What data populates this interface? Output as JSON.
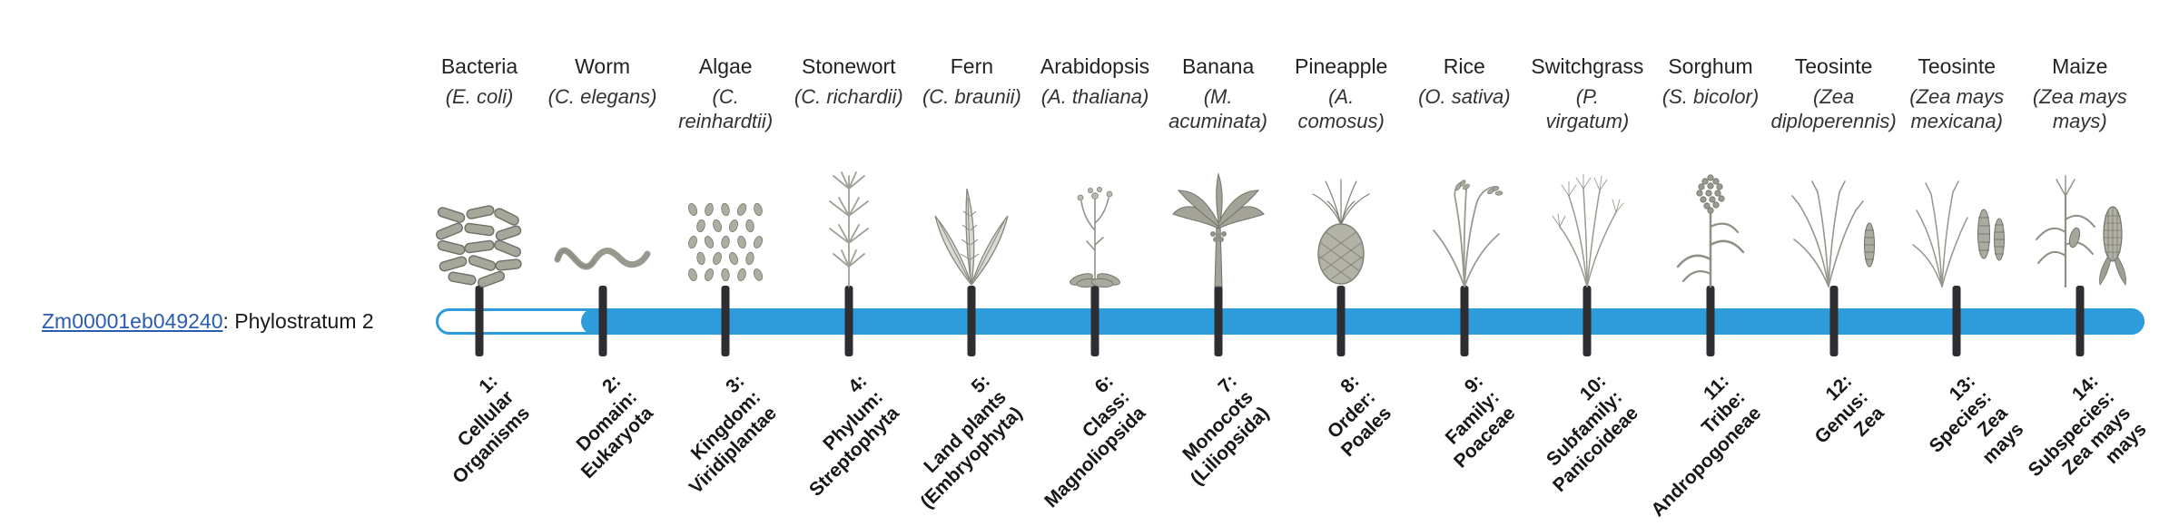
{
  "gene_label": {
    "gene_id": "Zm00001eb049240",
    "suffix": ": Phylostratum 2"
  },
  "timeline": {
    "track_color": "#2E9BDB",
    "fill_color": "#2E9BDB",
    "tick_color": "#2E2E32",
    "phylostratum": 2,
    "fill_start_stratum": 2,
    "total_strata": 14
  },
  "strata": [
    {
      "number": "1",
      "organism": "Bacteria",
      "scientific_lines": [
        "(E. coli)"
      ],
      "icon": "bacteria-icon",
      "tick_label_lines": [
        "1:",
        "Cellular",
        "Organisms"
      ]
    },
    {
      "number": "2",
      "organism": "Worm",
      "scientific_lines": [
        "(C. elegans)"
      ],
      "icon": "worm-icon",
      "tick_label_lines": [
        "2:",
        "Domain:",
        "Eukaryota"
      ]
    },
    {
      "number": "3",
      "organism": "Algae",
      "scientific_lines": [
        "(C.",
        "reinhardtii)"
      ],
      "icon": "algae-icon",
      "tick_label_lines": [
        "3:",
        "Kingdom:",
        "Viridiplantae"
      ]
    },
    {
      "number": "4",
      "organism": "Stonewort",
      "scientific_lines": [
        "(C. richardii)"
      ],
      "icon": "stonewort-icon",
      "tick_label_lines": [
        "4:",
        "Phylum:",
        "Streptophyta"
      ]
    },
    {
      "number": "5",
      "organism": "Fern",
      "scientific_lines": [
        "(C. braunii)"
      ],
      "icon": "fern-icon",
      "tick_label_lines": [
        "5:",
        "Land plants",
        "(Embryophyta)"
      ]
    },
    {
      "number": "6",
      "organism": "Arabidopsis",
      "scientific_lines": [
        "(A. thaliana)"
      ],
      "icon": "arabidopsis-icon",
      "tick_label_lines": [
        "6:",
        "Class:",
        "Magnoliopsida"
      ]
    },
    {
      "number": "7",
      "organism": "Banana",
      "scientific_lines": [
        "(M.",
        "acuminata)"
      ],
      "icon": "banana-icon",
      "tick_label_lines": [
        "7:",
        "Monocots",
        "(Liliopsida)"
      ]
    },
    {
      "number": "8",
      "organism": "Pineapple",
      "scientific_lines": [
        "(A.",
        "comosus)"
      ],
      "icon": "pineapple-icon",
      "tick_label_lines": [
        "8:",
        "Order:",
        "Poales"
      ]
    },
    {
      "number": "9",
      "organism": "Rice",
      "scientific_lines": [
        "(O. sativa)"
      ],
      "icon": "rice-icon",
      "tick_label_lines": [
        "9:",
        "Family:",
        "Poaceae"
      ]
    },
    {
      "number": "10",
      "organism": "Switchgrass",
      "scientific_lines": [
        "(P.",
        "virgatum)"
      ],
      "icon": "switchgrass-icon",
      "tick_label_lines": [
        "10:",
        "Subfamily:",
        "Panicoideae"
      ]
    },
    {
      "number": "11",
      "organism": "Sorghum",
      "scientific_lines": [
        "(S. bicolor)"
      ],
      "icon": "sorghum-icon",
      "tick_label_lines": [
        "11:",
        "Tribe:",
        "Andropogoneae"
      ]
    },
    {
      "number": "12",
      "organism": "Teosinte",
      "scientific_lines": [
        "(Zea",
        "diploperennis)"
      ],
      "icon": "teosinte-diploperennis-icon",
      "tick_label_lines": [
        "12:",
        "Genus:",
        "Zea"
      ]
    },
    {
      "number": "13",
      "organism": "Teosinte",
      "scientific_lines": [
        "(Zea mays",
        "mexicana)"
      ],
      "icon": "teosinte-mexicana-icon",
      "tick_label_lines": [
        "13:",
        "Species:",
        "Zea",
        "mays"
      ]
    },
    {
      "number": "14",
      "organism": "Maize",
      "scientific_lines": [
        "(Zea mays",
        "mays)"
      ],
      "icon": "maize-icon",
      "tick_label_lines": [
        "14:",
        "Subspecies:",
        "Zea mays",
        "mays"
      ]
    }
  ]
}
